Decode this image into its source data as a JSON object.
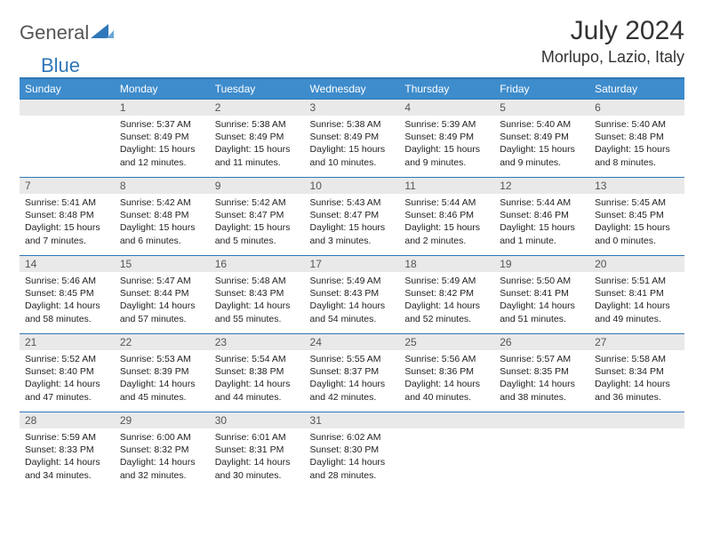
{
  "brand": {
    "name_a": "General",
    "name_b": "Blue"
  },
  "title": "July 2024",
  "location": "Morlupo, Lazio, Italy",
  "colors": {
    "header_bg": "#3e8ccc",
    "border": "#2f77b8",
    "daynum_bg": "#e9e9e9",
    "text": "#222222",
    "logo_blue": "#2f77b8"
  },
  "weekdays": [
    "Sunday",
    "Monday",
    "Tuesday",
    "Wednesday",
    "Thursday",
    "Friday",
    "Saturday"
  ],
  "first_weekday_index": 1,
  "days": [
    {
      "n": 1,
      "sr": "5:37 AM",
      "ss": "8:49 PM",
      "dl": "15 hours and 12 minutes."
    },
    {
      "n": 2,
      "sr": "5:38 AM",
      "ss": "8:49 PM",
      "dl": "15 hours and 11 minutes."
    },
    {
      "n": 3,
      "sr": "5:38 AM",
      "ss": "8:49 PM",
      "dl": "15 hours and 10 minutes."
    },
    {
      "n": 4,
      "sr": "5:39 AM",
      "ss": "8:49 PM",
      "dl": "15 hours and 9 minutes."
    },
    {
      "n": 5,
      "sr": "5:40 AM",
      "ss": "8:49 PM",
      "dl": "15 hours and 9 minutes."
    },
    {
      "n": 6,
      "sr": "5:40 AM",
      "ss": "8:48 PM",
      "dl": "15 hours and 8 minutes."
    },
    {
      "n": 7,
      "sr": "5:41 AM",
      "ss": "8:48 PM",
      "dl": "15 hours and 7 minutes."
    },
    {
      "n": 8,
      "sr": "5:42 AM",
      "ss": "8:48 PM",
      "dl": "15 hours and 6 minutes."
    },
    {
      "n": 9,
      "sr": "5:42 AM",
      "ss": "8:47 PM",
      "dl": "15 hours and 5 minutes."
    },
    {
      "n": 10,
      "sr": "5:43 AM",
      "ss": "8:47 PM",
      "dl": "15 hours and 3 minutes."
    },
    {
      "n": 11,
      "sr": "5:44 AM",
      "ss": "8:46 PM",
      "dl": "15 hours and 2 minutes."
    },
    {
      "n": 12,
      "sr": "5:44 AM",
      "ss": "8:46 PM",
      "dl": "15 hours and 1 minute."
    },
    {
      "n": 13,
      "sr": "5:45 AM",
      "ss": "8:45 PM",
      "dl": "15 hours and 0 minutes."
    },
    {
      "n": 14,
      "sr": "5:46 AM",
      "ss": "8:45 PM",
      "dl": "14 hours and 58 minutes."
    },
    {
      "n": 15,
      "sr": "5:47 AM",
      "ss": "8:44 PM",
      "dl": "14 hours and 57 minutes."
    },
    {
      "n": 16,
      "sr": "5:48 AM",
      "ss": "8:43 PM",
      "dl": "14 hours and 55 minutes."
    },
    {
      "n": 17,
      "sr": "5:49 AM",
      "ss": "8:43 PM",
      "dl": "14 hours and 54 minutes."
    },
    {
      "n": 18,
      "sr": "5:49 AM",
      "ss": "8:42 PM",
      "dl": "14 hours and 52 minutes."
    },
    {
      "n": 19,
      "sr": "5:50 AM",
      "ss": "8:41 PM",
      "dl": "14 hours and 51 minutes."
    },
    {
      "n": 20,
      "sr": "5:51 AM",
      "ss": "8:41 PM",
      "dl": "14 hours and 49 minutes."
    },
    {
      "n": 21,
      "sr": "5:52 AM",
      "ss": "8:40 PM",
      "dl": "14 hours and 47 minutes."
    },
    {
      "n": 22,
      "sr": "5:53 AM",
      "ss": "8:39 PM",
      "dl": "14 hours and 45 minutes."
    },
    {
      "n": 23,
      "sr": "5:54 AM",
      "ss": "8:38 PM",
      "dl": "14 hours and 44 minutes."
    },
    {
      "n": 24,
      "sr": "5:55 AM",
      "ss": "8:37 PM",
      "dl": "14 hours and 42 minutes."
    },
    {
      "n": 25,
      "sr": "5:56 AM",
      "ss": "8:36 PM",
      "dl": "14 hours and 40 minutes."
    },
    {
      "n": 26,
      "sr": "5:57 AM",
      "ss": "8:35 PM",
      "dl": "14 hours and 38 minutes."
    },
    {
      "n": 27,
      "sr": "5:58 AM",
      "ss": "8:34 PM",
      "dl": "14 hours and 36 minutes."
    },
    {
      "n": 28,
      "sr": "5:59 AM",
      "ss": "8:33 PM",
      "dl": "14 hours and 34 minutes."
    },
    {
      "n": 29,
      "sr": "6:00 AM",
      "ss": "8:32 PM",
      "dl": "14 hours and 32 minutes."
    },
    {
      "n": 30,
      "sr": "6:01 AM",
      "ss": "8:31 PM",
      "dl": "14 hours and 30 minutes."
    },
    {
      "n": 31,
      "sr": "6:02 AM",
      "ss": "8:30 PM",
      "dl": "14 hours and 28 minutes."
    }
  ],
  "labels": {
    "sunrise": "Sunrise:",
    "sunset": "Sunset:",
    "daylight": "Daylight:"
  }
}
